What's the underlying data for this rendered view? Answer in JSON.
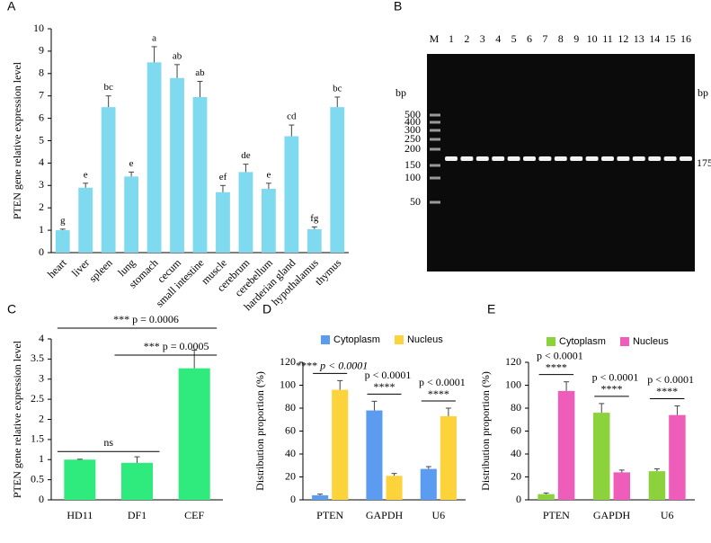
{
  "chart_data": [
    {
      "type": "bar",
      "label": "A",
      "ylabel": "PTEN gene relative expression level",
      "categories": [
        "heart",
        "liver",
        "spleen",
        "lung",
        "stomach",
        "cecum",
        "small intestine",
        "muscle",
        "cerebrum",
        "cerebellum",
        "harderian gland",
        "hypothalamus",
        "thymus"
      ],
      "series": [
        {
          "color": "#7fd9ef",
          "values": [
            1.0,
            2.9,
            6.5,
            3.4,
            8.5,
            7.8,
            6.95,
            2.7,
            3.6,
            2.85,
            5.2,
            1.05,
            6.5
          ],
          "errors": [
            0.05,
            0.2,
            0.5,
            0.2,
            0.7,
            0.6,
            0.7,
            0.3,
            0.35,
            0.25,
            0.5,
            0.1,
            0.45
          ]
        }
      ],
      "letters": [
        "g",
        "e",
        "bc",
        "e",
        "a",
        "ab",
        "ab",
        "ef",
        "de",
        "e",
        "cd",
        "fg",
        "bc"
      ],
      "ylim": [
        0,
        10
      ],
      "yticks": [
        0,
        1,
        2,
        3,
        4,
        5,
        6,
        7,
        8,
        9,
        10
      ]
    },
    {
      "type": "bar",
      "label": "C",
      "ylabel": "PTEN gene relative expression level",
      "categories": [
        "HD11",
        "DF1",
        "CEF"
      ],
      "series": [
        {
          "color": "#2fea7c",
          "values": [
            1.0,
            0.92,
            3.27
          ],
          "errors": [
            0.01,
            0.15,
            0.45
          ]
        }
      ],
      "annotations": [
        "ns",
        "*** p = 0.0006",
        "*** p = 0.0005"
      ],
      "ylim": [
        0,
        4
      ],
      "yticks": [
        0,
        0.5,
        1,
        1.5,
        2,
        2.5,
        3,
        3.5,
        4
      ]
    },
    {
      "type": "bar",
      "label": "D",
      "ylabel": "Distribution proportion (%)",
      "categories": [
        "PTEN",
        "GAPDH",
        "U6"
      ],
      "series": [
        {
          "name": "Cytoplasm",
          "color": "#5b9cf0",
          "values": [
            4,
            78,
            27
          ],
          "errors": [
            1,
            8,
            2
          ]
        },
        {
          "name": "Nucleus",
          "color": "#fdd33c",
          "values": [
            96,
            21,
            73
          ],
          "errors": [
            8,
            2,
            7
          ]
        }
      ],
      "annotations": [
        {
          "stars": "****",
          "p": "p < 0.0001"
        },
        {
          "stars": "****",
          "p": "p < 0.0001"
        },
        {
          "stars": "****",
          "p": "p < 0.0001"
        }
      ],
      "ylim": [
        0,
        120
      ],
      "yticks": [
        0,
        20,
        40,
        60,
        80,
        100,
        120
      ]
    },
    {
      "type": "bar",
      "label": "E",
      "ylabel": "Distribution proportion (%)",
      "categories": [
        "PTEN",
        "GAPDH",
        "U6"
      ],
      "series": [
        {
          "name": "Cytoplasm",
          "color": "#8cd23c",
          "values": [
            5,
            76,
            25
          ],
          "errors": [
            1,
            8,
            2
          ]
        },
        {
          "name": "Nucleus",
          "color": "#ee5db9",
          "values": [
            95,
            24,
            74
          ],
          "errors": [
            8,
            2,
            8
          ]
        }
      ],
      "annotations": [
        {
          "stars": "****",
          "p": "p < 0.0001"
        },
        {
          "stars": "****",
          "p": "p < 0.0001"
        },
        {
          "stars": "****",
          "p": "p < 0.0001"
        }
      ],
      "ylim": [
        0,
        120
      ],
      "yticks": [
        0,
        20,
        40,
        60,
        80,
        100,
        120
      ]
    }
  ],
  "gel": {
    "label": "B",
    "marker": "M",
    "lanes": [
      "1",
      "2",
      "3",
      "4",
      "5",
      "6",
      "7",
      "8",
      "9",
      "10",
      "11",
      "12",
      "13",
      "14",
      "15",
      "16"
    ],
    "unit_left": "bp",
    "unit_right": "bp",
    "ladder": [
      "500",
      "400",
      "300",
      "250",
      "200",
      "150",
      "100",
      "50"
    ],
    "band_size": "175"
  }
}
